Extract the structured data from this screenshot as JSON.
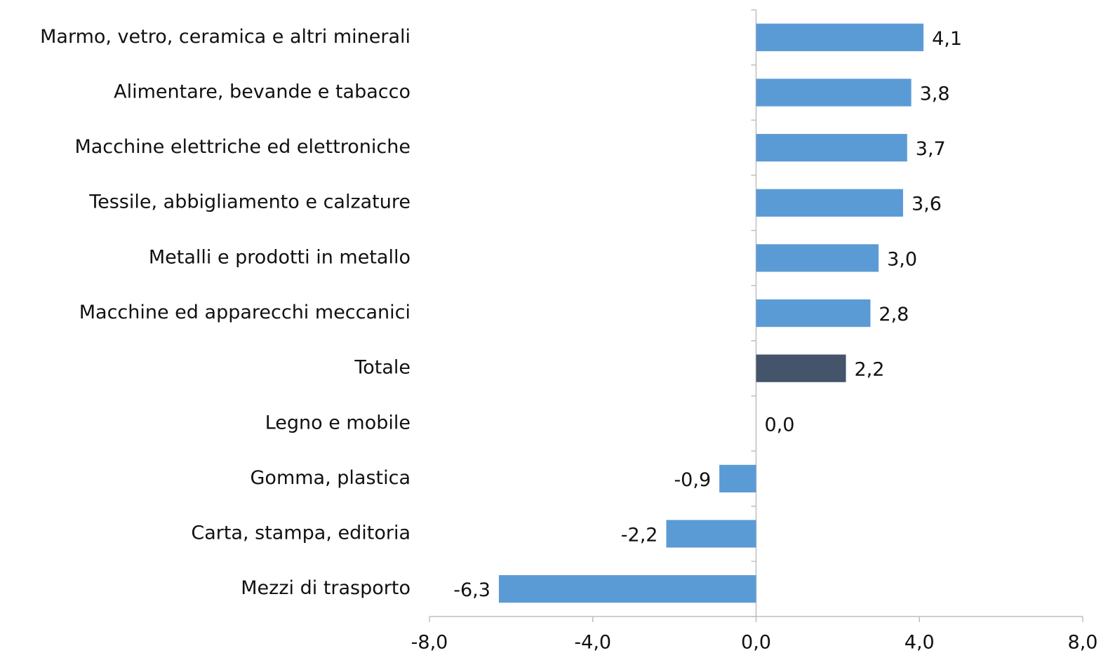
{
  "chart_data": {
    "type": "bar",
    "orientation": "horizontal",
    "categories": [
      "Marmo, vetro, ceramica e altri minerali",
      "Alimentare, bevande e tabacco",
      "Macchine elettriche ed elettroniche",
      "Tessile, abbigliamento e calzature",
      "Metalli e prodotti in metallo",
      "Macchine ed apparecchi meccanici",
      "Totale",
      "Legno e mobile",
      "Gomma, plastica",
      "Carta, stampa, editoria",
      "Mezzi di trasporto"
    ],
    "values": [
      4.1,
      3.8,
      3.7,
      3.6,
      3.0,
      2.8,
      2.2,
      0.0,
      -0.9,
      -2.2,
      -6.3
    ],
    "value_labels": [
      "4,1",
      "3,8",
      "3,7",
      "3,6",
      "3,0",
      "2,8",
      "2,2",
      "0,0",
      "-0,9",
      "-2,2",
      "-6,3"
    ],
    "colors": [
      "#5b9bd5",
      "#5b9bd5",
      "#5b9bd5",
      "#5b9bd5",
      "#5b9bd5",
      "#5b9bd5",
      "#44546a",
      "#5b9bd5",
      "#5b9bd5",
      "#5b9bd5",
      "#5b9bd5"
    ],
    "xlim": [
      -8,
      8
    ],
    "xticks": [
      {
        "value": -8,
        "label": "-8,0"
      },
      {
        "value": -4,
        "label": "-4,0"
      },
      {
        "value": 0,
        "label": "0,0"
      },
      {
        "value": 4,
        "label": "4,0"
      },
      {
        "value": 8,
        "label": "8,0"
      }
    ],
    "grid": false
  }
}
